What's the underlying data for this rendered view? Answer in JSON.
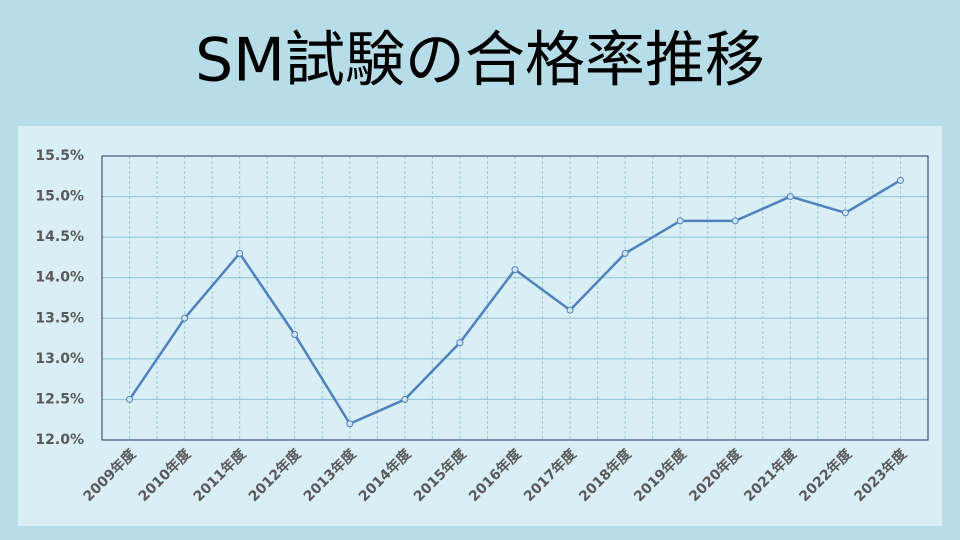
{
  "chart_data": {
    "type": "line",
    "title": "SM試験の合格率推移",
    "categories": [
      "2009年度",
      "2010年度",
      "2011年度",
      "2012年度",
      "2013年度",
      "2014年度",
      "2015年度",
      "2016年度",
      "2017年度",
      "2018年度",
      "2019年度",
      "2020年度",
      "2021年度",
      "2022年度",
      "2023年度"
    ],
    "values": [
      12.5,
      13.5,
      14.3,
      13.3,
      12.2,
      12.5,
      13.2,
      14.1,
      13.6,
      14.3,
      14.7,
      14.7,
      15.0,
      14.8,
      15.2
    ],
    "color": "#4f81bd",
    "ylim": [
      12.0,
      15.5
    ],
    "yticks": [
      {
        "value": 12.0,
        "label": "12.0%"
      },
      {
        "value": 12.5,
        "label": "12.5%"
      },
      {
        "value": 13.0,
        "label": "13.0%"
      },
      {
        "value": 13.5,
        "label": "13.5%"
      },
      {
        "value": 14.0,
        "label": "14.0%"
      },
      {
        "value": 14.5,
        "label": "14.5%"
      },
      {
        "value": 15.0,
        "label": "15.0%"
      },
      {
        "value": 15.5,
        "label": "15.5%"
      }
    ],
    "grid": true
  }
}
